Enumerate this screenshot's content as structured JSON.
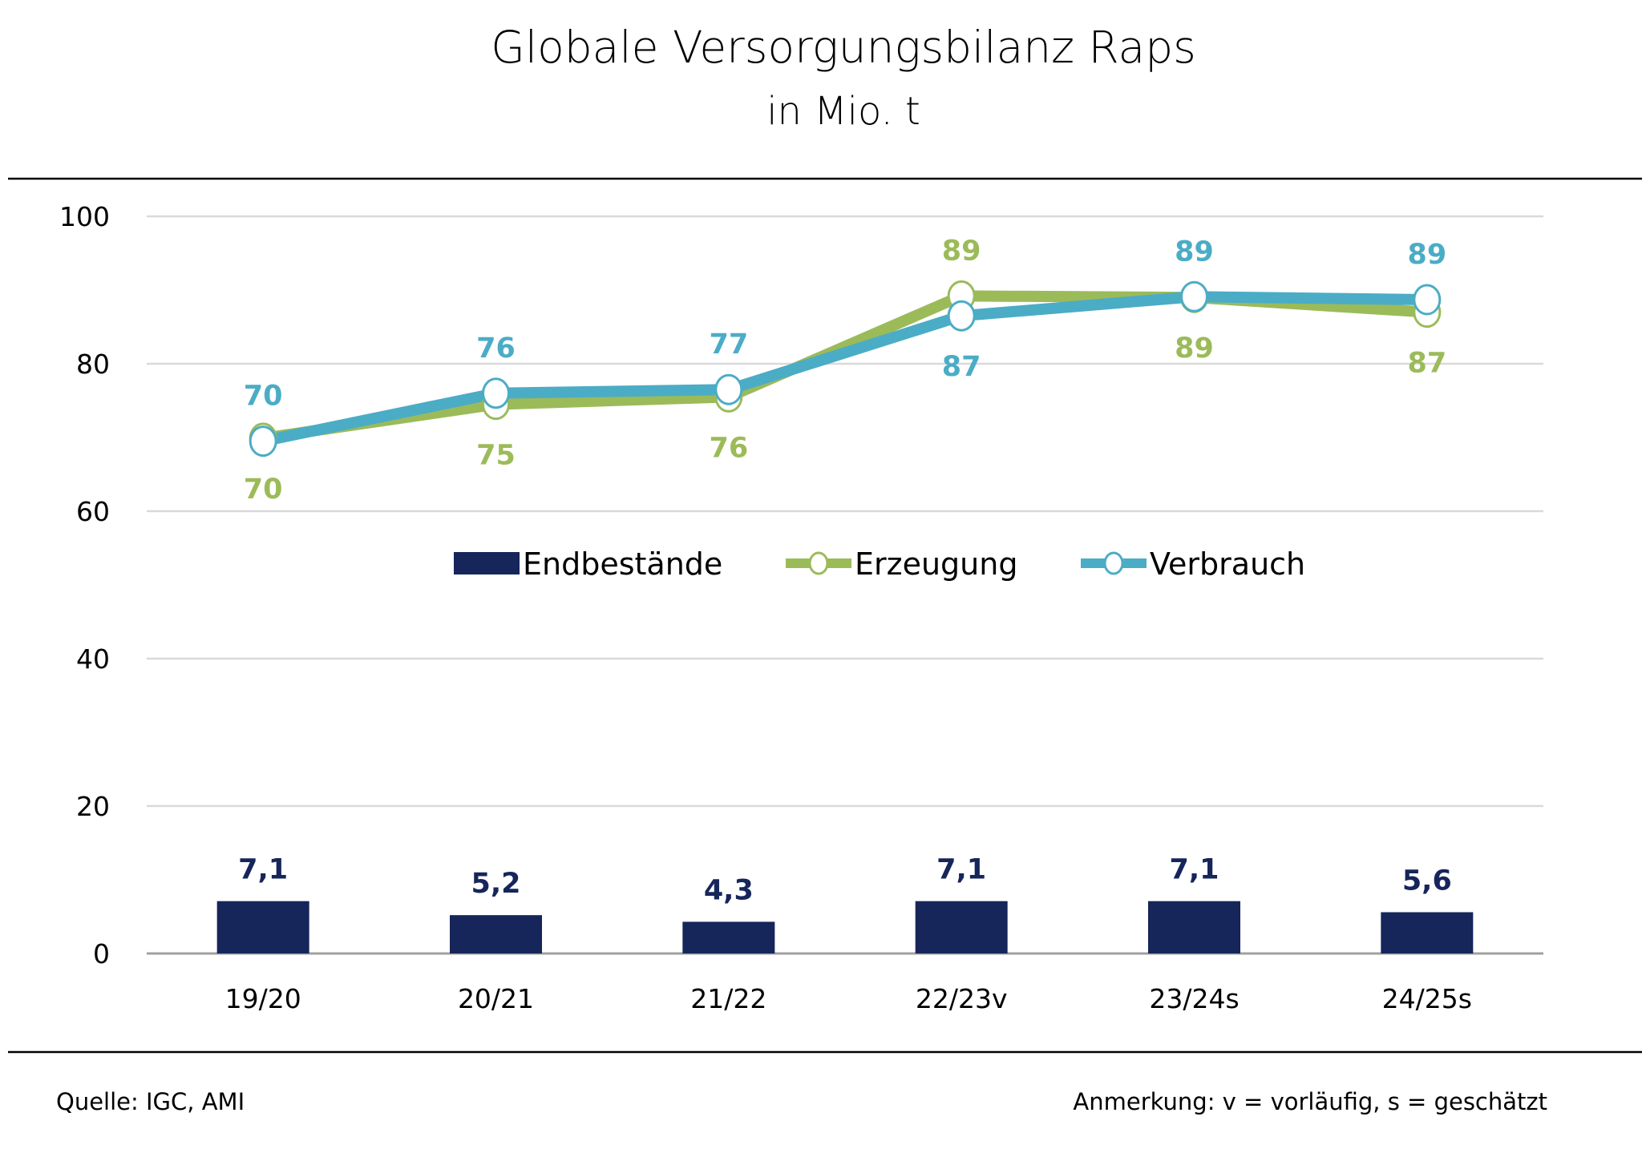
{
  "chart_data": {
    "type": "bar+line",
    "title": "Globale Versorgungsbilanz Raps",
    "subtitle": "in Mio. t",
    "categories": [
      "19/20",
      "20/21",
      "21/22",
      "22/23v",
      "23/24s",
      "24/25s"
    ],
    "ylim": [
      0,
      100
    ],
    "yticks": [
      "0",
      "20",
      "40",
      "60",
      "80",
      "100"
    ],
    "grid": true,
    "legend_position": "center",
    "series": [
      {
        "name": "Endbestände",
        "type": "bar",
        "color": "#16255a",
        "values": [
          7.1,
          5.2,
          4.3,
          7.1,
          7.1,
          5.6
        ],
        "labels": [
          "7,1",
          "5,2",
          "4,3",
          "7,1",
          "7,1",
          "5,6"
        ]
      },
      {
        "name": "Erzeugung",
        "type": "line",
        "color": "#9bbb59",
        "values": [
          69.9,
          74.5,
          75.5,
          89.2,
          89.0,
          87.0
        ],
        "labels": [
          "70",
          "75",
          "76",
          "89",
          "89",
          "87"
        ],
        "label_side": [
          "below",
          "below",
          "below",
          "above",
          "below",
          "below"
        ]
      },
      {
        "name": "Verbrauch",
        "type": "line",
        "color": "#4bacc6",
        "values": [
          69.5,
          76.0,
          76.5,
          86.5,
          89.1,
          88.7
        ],
        "labels": [
          "70",
          "76",
          "77",
          "87",
          "89",
          "89"
        ],
        "label_side": [
          "above",
          "above",
          "above",
          "below",
          "above",
          "above"
        ]
      }
    ],
    "source": "Quelle: IGC, AMI",
    "note": "Anmerkung: v = vorläufig, s = geschätzt"
  }
}
